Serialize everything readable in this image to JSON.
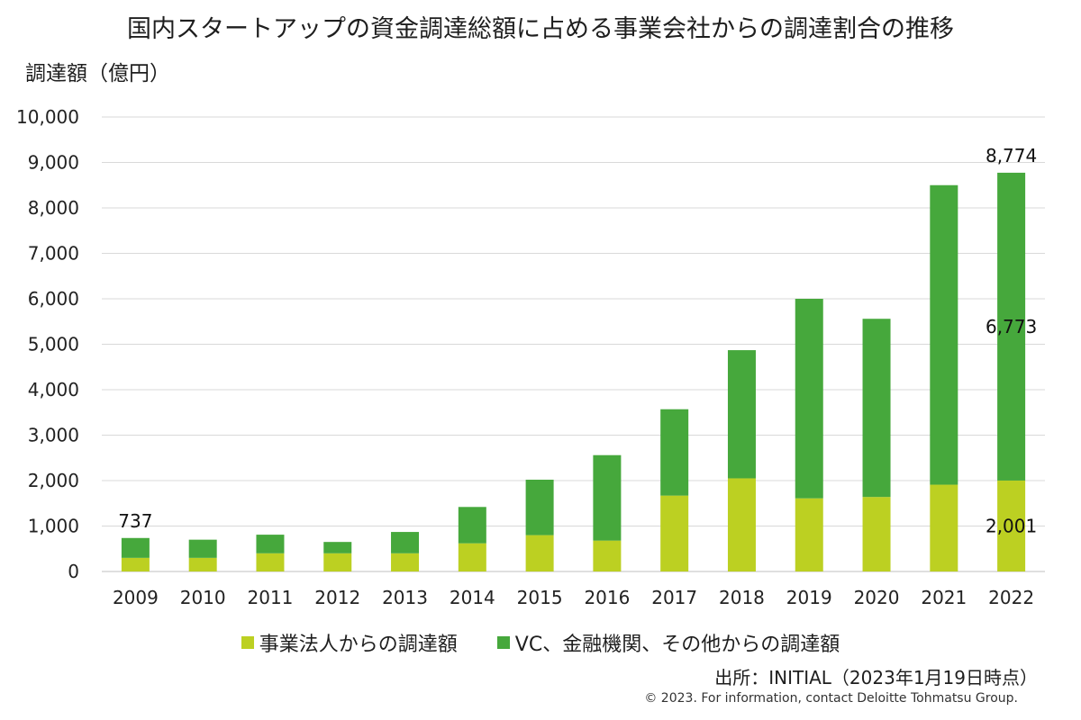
{
  "header": {
    "title": "国内スタートアップの資金調達総額に占める事業会社からの調達割合の推移",
    "yunit": "調達額（億円）"
  },
  "legend": [
    {
      "label": "事業法人からの調達額",
      "color": "#bcd022"
    },
    {
      "label": "VC、金融機関、その他からの調達額",
      "color": "#46a83c"
    }
  ],
  "footer": {
    "source": "出所：INITIAL（2023年1月19日時点）",
    "copyright": "© 2023. For information, contact Deloitte Tohmatsu Group."
  },
  "chart_data": {
    "type": "bar",
    "stacked": true,
    "title": "国内スタートアップの資金調達総額に占める事業会社からの調達割合の推移",
    "ylabel": "調達額（億円）",
    "xlabel": "",
    "ylim": [
      0,
      10000
    ],
    "yticks": [
      "0",
      "1,000",
      "2,000",
      "3,000",
      "4,000",
      "5,000",
      "6,000",
      "7,000",
      "8,000",
      "9,000",
      "10,000"
    ],
    "categories": [
      "2009",
      "2010",
      "2011",
      "2012",
      "2013",
      "2014",
      "2015",
      "2016",
      "2017",
      "2018",
      "2019",
      "2020",
      "2021",
      "2022"
    ],
    "series": [
      {
        "name": "事業法人からの調達額",
        "color": "#bcd022",
        "values": [
          300,
          300,
          400,
          400,
          400,
          620,
          800,
          680,
          1670,
          2050,
          1610,
          1640,
          1910,
          2001
        ]
      },
      {
        "name": "VC、金融機関、その他からの調達額",
        "color": "#46a83c",
        "values": [
          437,
          400,
          410,
          250,
          470,
          800,
          1220,
          1880,
          1900,
          2820,
          4390,
          3920,
          6590,
          6773
        ]
      }
    ],
    "data_labels": [
      {
        "category": "2009",
        "text": "737",
        "position": "top"
      },
      {
        "category": "2022",
        "text": "8,774",
        "position": "top"
      },
      {
        "category": "2022",
        "text": "6,773",
        "position": "series-2"
      },
      {
        "category": "2022",
        "text": "2,001",
        "position": "series-1"
      }
    ],
    "grid": true,
    "legend_position": "bottom"
  }
}
